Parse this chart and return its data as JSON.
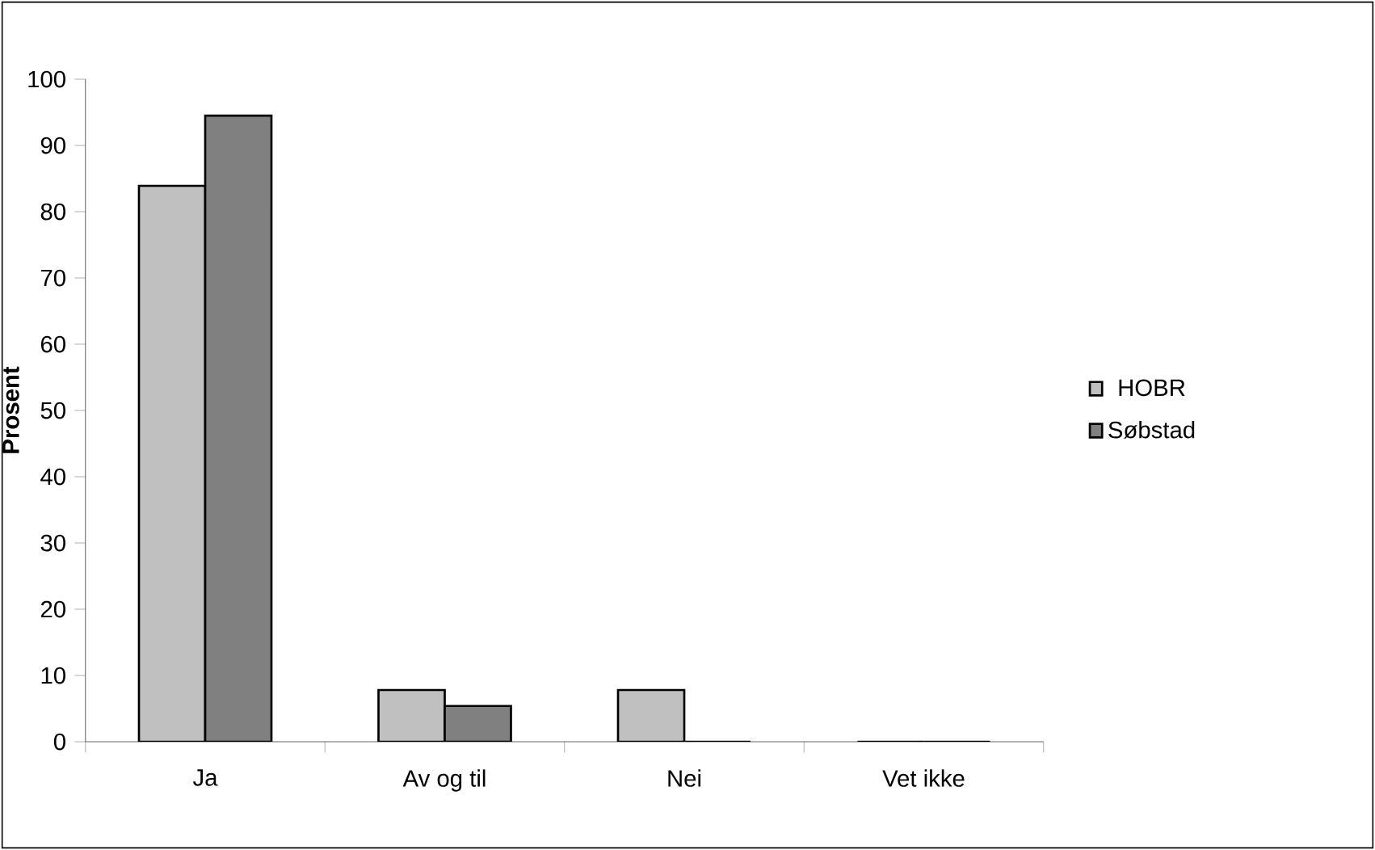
{
  "chart_data": {
    "type": "bar",
    "ylabel": "Prosent",
    "categories": [
      "Ja",
      "Av og til",
      "Nei",
      "Vet ikke"
    ],
    "series": [
      {
        "name": "HOBR",
        "color": "#c0c0c0",
        "values": [
          83.9,
          7.8,
          7.8,
          0
        ]
      },
      {
        "name": "Søbstad",
        "color": "#808080",
        "values": [
          94.5,
          5.4,
          0,
          0
        ]
      }
    ],
    "ylim": [
      0,
      100
    ],
    "yticks": [
      0,
      10,
      20,
      30,
      40,
      50,
      60,
      70,
      80,
      90,
      100
    ],
    "grid": false,
    "legend": "right"
  }
}
